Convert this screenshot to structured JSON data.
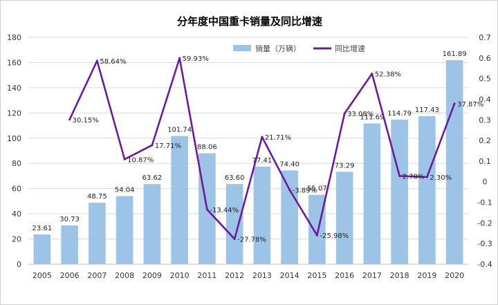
{
  "chart_data": {
    "type": "bar+line",
    "title": "分年度中国重卡销量及同比增速",
    "categories": [
      "2005",
      "2006",
      "2007",
      "2008",
      "2009",
      "2010",
      "2011",
      "2012",
      "2013",
      "2014",
      "2015",
      "2016",
      "2017",
      "2018",
      "2019",
      "2020"
    ],
    "series": [
      {
        "name": "销量（万辆）",
        "type": "bar",
        "axis": "left",
        "values": [
          23.61,
          30.73,
          48.75,
          54.04,
          63.62,
          101.74,
          88.06,
          63.6,
          77.41,
          74.4,
          55.07,
          73.29,
          111.69,
          114.79,
          117.43,
          161.89
        ],
        "labels": [
          "23.61",
          "30.73",
          "48.75",
          "54.04",
          "63.62",
          "101.74",
          "88.06",
          "63.60",
          "77.41",
          "74.40",
          "55.07",
          "73.29",
          "111.69",
          "114.79",
          "117.43",
          "161.89"
        ]
      },
      {
        "name": "同比增速",
        "type": "line",
        "axis": "right",
        "values": [
          null,
          0.3015,
          0.5864,
          0.1087,
          0.1771,
          0.5993,
          -0.1344,
          -0.2778,
          0.2171,
          -0.0389,
          -0.2598,
          0.3308,
          0.5238,
          0.0278,
          0.023,
          0.3787
        ],
        "labels": [
          null,
          "30.15%",
          "58.64%",
          "10.87%",
          "17.71%",
          "59.93%",
          "-13.44%",
          "-27.78%",
          "21.71%",
          "-3.89%",
          "-25.98%",
          "33.08%",
          "52.38%",
          "2.78%",
          "2.30%",
          "37.87%"
        ]
      }
    ],
    "left_axis": {
      "ylim": [
        0,
        180
      ],
      "ticks": [
        "0",
        "20",
        "40",
        "60",
        "80",
        "100",
        "120",
        "140",
        "160",
        "180"
      ]
    },
    "right_axis": {
      "ylim": [
        -0.4,
        0.7
      ],
      "ticks": [
        "-0.4",
        "-0.3",
        "-0.2",
        "-0.1",
        "0",
        "0.1",
        "0.2",
        "0.3",
        "0.4",
        "0.5",
        "0.6",
        "0.7"
      ]
    },
    "grid": true,
    "legend_position": "top-center",
    "colors": {
      "bar": "#9dc3e6",
      "line": "#6a1b9a",
      "grid": "#d9d9d9"
    }
  }
}
